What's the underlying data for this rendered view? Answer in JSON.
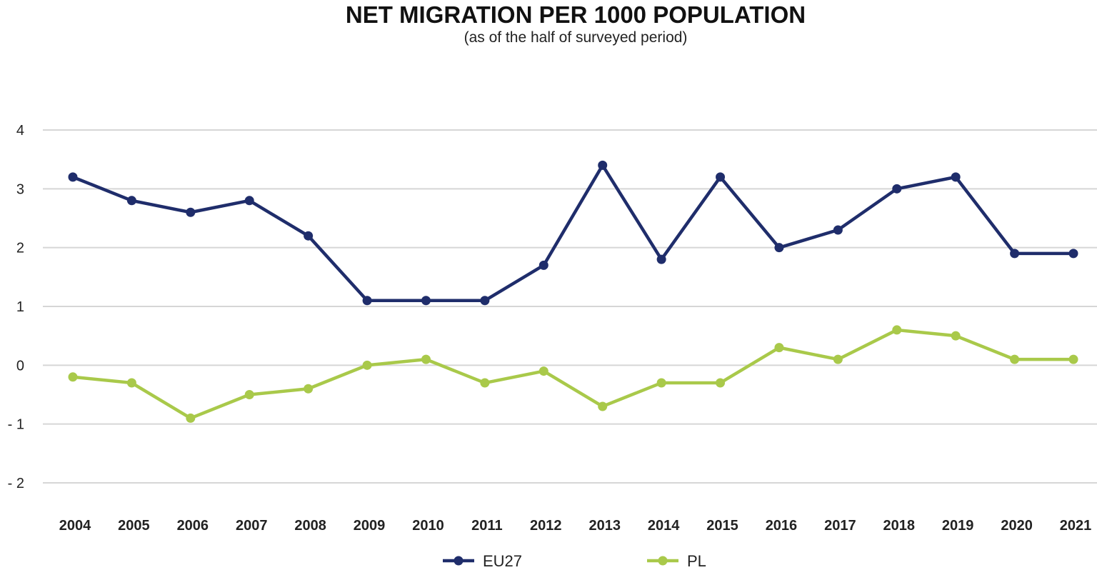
{
  "chart_data": {
    "type": "line",
    "title": "NET MIGRATION PER 1000 POPULATION",
    "subtitle": "(as of the half of surveyed period)",
    "xlabel": "",
    "ylabel": "",
    "categories": [
      "2004",
      "2005",
      "2006",
      "2007",
      "2008",
      "2009",
      "2010",
      "2011",
      "2012",
      "2013",
      "2014",
      "2015",
      "2016",
      "2017",
      "2018",
      "2019",
      "2020",
      "2021"
    ],
    "y_ticks": [
      4,
      3,
      2,
      1,
      0,
      -1,
      -2
    ],
    "y_tick_labels": [
      "4",
      "3",
      "2",
      "1",
      "0",
      "- 1",
      "- 2"
    ],
    "ylim": [
      -2,
      4
    ],
    "grid": true,
    "legend_position": "bottom",
    "series": [
      {
        "name": "EU27",
        "color": "#1f2d6b",
        "values": [
          3.2,
          2.8,
          2.6,
          2.8,
          2.2,
          1.1,
          1.1,
          1.1,
          1.7,
          3.4,
          1.8,
          3.2,
          2.0,
          2.3,
          3.0,
          3.2,
          1.9,
          1.9
        ]
      },
      {
        "name": "PL",
        "color": "#a9c94a",
        "values": [
          -0.2,
          -0.3,
          -0.9,
          -0.5,
          -0.4,
          0.0,
          0.1,
          -0.3,
          -0.1,
          -0.7,
          -0.3,
          -0.3,
          0.3,
          0.1,
          0.6,
          0.5,
          0.1,
          0.1
        ]
      }
    ]
  }
}
